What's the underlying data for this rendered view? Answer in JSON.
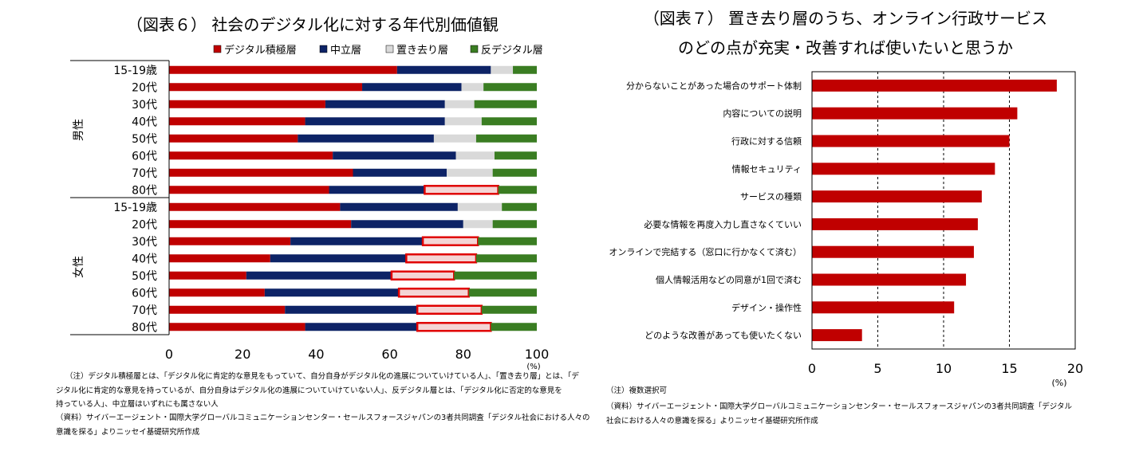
{
  "chart_data": [
    {
      "type": "bar",
      "orientation": "horizontal",
      "stacked": true,
      "title": "（図表６） 社会のデジタル化に対する年代別価値観",
      "xlabel": "(%)",
      "xlim": [
        0,
        100
      ],
      "x_ticks": [
        "0",
        "20",
        "40",
        "60",
        "80",
        "100"
      ],
      "group_labels": [
        "男性",
        "女性"
      ],
      "groups": [
        {
          "name": "男性",
          "categories": [
            "15-19歳",
            "20代",
            "30代",
            "40代",
            "50代",
            "60代",
            "70代",
            "80代"
          ]
        },
        {
          "name": "女性",
          "categories": [
            "15-19歳",
            "20代",
            "30代",
            "40代",
            "50代",
            "60代",
            "70代",
            "80代"
          ]
        }
      ],
      "series": [
        {
          "name": "デジタル積極層",
          "color": "#c00000",
          "values": [
            62,
            52.5,
            42.5,
            37,
            35,
            44.5,
            50,
            43.5,
            46.5,
            49.5,
            33,
            27.5,
            21,
            26,
            31.5,
            37
          ]
        },
        {
          "name": "中立層",
          "color": "#0d2366",
          "values": [
            25.5,
            27,
            32.5,
            38,
            37,
            33.5,
            25.5,
            26,
            32,
            30.5,
            36,
            37,
            39.5,
            36.5,
            36,
            30.5
          ]
        },
        {
          "name": "置き去り層",
          "color": "#d9d9d9",
          "values": [
            6,
            6,
            8,
            10,
            11.5,
            10.5,
            12.5,
            20,
            12,
            8,
            15,
            19,
            17,
            19,
            17.5,
            20
          ]
        },
        {
          "name": "反デジタル層",
          "color": "#3a7d22",
          "values": [
            6.5,
            14.5,
            17,
            15,
            16.5,
            11.5,
            12,
            10.5,
            9.5,
            12,
            16,
            16.5,
            22.5,
            18.5,
            15,
            12.5
          ]
        }
      ],
      "highlighted": [
        "男性 80代",
        "女性 30代",
        "女性 40代",
        "女性 50代",
        "女性 60代",
        "女性 70代",
        "女性 80代"
      ]
    },
    {
      "type": "bar",
      "orientation": "horizontal",
      "title_lines": [
        "（図表７） 置き去り層のうち、オンライン行政サービス",
        "のどの点が充実・改善すれば使いたいと思うか"
      ],
      "xlabel": "(%)",
      "xlim": [
        0,
        20
      ],
      "x_ticks": [
        "0",
        "5",
        "10",
        "15",
        "20"
      ],
      "categories": [
        "分からないことがあった場合のサポート体制",
        "内容についての説明",
        "行政に対する信頼",
        "情報セキュリティ",
        "サービスの種類",
        "必要な情報を再度入力し直さなくていい",
        "オンラインで完結する（窓口に行かなくて済む）",
        "個人情報活用などの同意が1回で済む",
        "デザイン・操作性",
        "どのような改善があっても使いたくない"
      ],
      "values": [
        18.6,
        15.6,
        15,
        13.9,
        12.9,
        12.6,
        12.3,
        11.7,
        10.8,
        3.8
      ],
      "color": "#c00000"
    }
  ],
  "notes": {
    "left": [
      "（注）デジタル積極層とは、「デジタル化に肯定的な意見をもっていて、自分自身がデジタル化の進展についていけている人」、「置き去り層」とは、「デ",
      "ジタル化に肯定的な意見を持っているが、自分自身はデジタル化の進展についていけていない人」、反デジタル層とは、「デジタル化に否定的な意見を",
      "持っている人」、中立層はいずれにも属さない人",
      "（資料）サイバーエージェント・国際大学グローバルコミュニケーションセンター・セールスフォースジャパンの3者共同調査「デジタル社会における人々の",
      "意識を探る」よりニッセイ基礎研究所作成"
    ],
    "right": [
      "（注）複数選択可",
      "（資料）サイバーエージェント・国際大学グローバルコミュニケーションセンター・セールスフォースジャパンの3者共同調査「デジタル",
      "社会における人々の意識を探る」よりニッセイ基礎研究所作成"
    ]
  }
}
